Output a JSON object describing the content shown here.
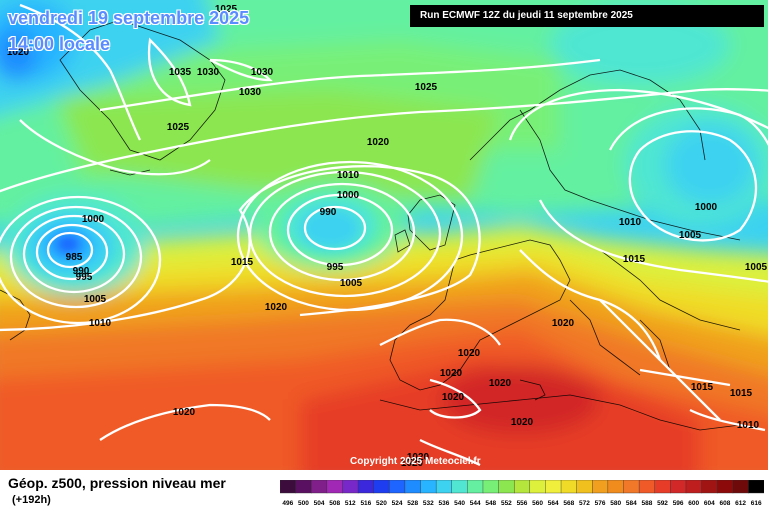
{
  "header": {
    "date_line1": "vendredi 19 septembre 2025",
    "date_line2": "14:00 locale",
    "run_label": "Run ECMWF 12Z du jeudi 11 septembre 2025"
  },
  "footer": {
    "title": "Géop. z500, pression niveau mer",
    "subtitle": "(+192h)",
    "copyright": "Copyright 2025 Meteociel.fr"
  },
  "legend": {
    "values": [
      "496",
      "500",
      "504",
      "508",
      "512",
      "516",
      "520",
      "524",
      "528",
      "532",
      "536",
      "540",
      "544",
      "548",
      "552",
      "556",
      "560",
      "564",
      "568",
      "572",
      "576",
      "580",
      "584",
      "588",
      "592",
      "596",
      "600",
      "604",
      "608",
      "612",
      "616"
    ],
    "colors": [
      "#3c0c3c",
      "#5a1060",
      "#801e8a",
      "#a028b4",
      "#7828c8",
      "#3c28dc",
      "#1e3cf0",
      "#1e64ff",
      "#1e8cff",
      "#28b4ff",
      "#3cd2f0",
      "#50e6d2",
      "#64f0a0",
      "#78f078",
      "#8ce650",
      "#b4e63c",
      "#dcf03c",
      "#f0f03c",
      "#f0dc28",
      "#f0c01e",
      "#f0a01e",
      "#f08c1e",
      "#f07828",
      "#f05a28",
      "#e63c28",
      "#d22828",
      "#be1e1e",
      "#a01414",
      "#8c0a0a",
      "#6e0a0a",
      "#000000"
    ]
  },
  "isobar_labels": [
    {
      "text": "1025"
    },
    {
      "text": "1035"
    },
    {
      "text": "1030"
    },
    {
      "text": "1030"
    },
    {
      "text": "1030"
    },
    {
      "text": "1025"
    },
    {
      "text": "1025"
    },
    {
      "text": "1020"
    },
    {
      "text": "1010"
    },
    {
      "text": "1000"
    },
    {
      "text": "990"
    },
    {
      "text": "995"
    },
    {
      "text": "1005"
    },
    {
      "text": "1000"
    },
    {
      "text": "985"
    },
    {
      "text": "990"
    },
    {
      "text": "995"
    },
    {
      "text": "1005"
    },
    {
      "text": "1010"
    },
    {
      "text": "1015"
    },
    {
      "text": "1020"
    },
    {
      "text": "1015"
    },
    {
      "text": "1010"
    },
    {
      "text": "1000"
    },
    {
      "text": "1005"
    },
    {
      "text": "1005"
    },
    {
      "text": "1020"
    },
    {
      "text": "1020"
    },
    {
      "text": "1020"
    },
    {
      "text": "1020"
    },
    {
      "text": "1020"
    },
    {
      "text": "1020"
    },
    {
      "text": "1020"
    },
    {
      "text": "1020"
    },
    {
      "text": "1020"
    },
    {
      "text": "1015"
    },
    {
      "text": "1015"
    },
    {
      "text": "1010"
    },
    {
      "text": "1020"
    }
  ]
}
